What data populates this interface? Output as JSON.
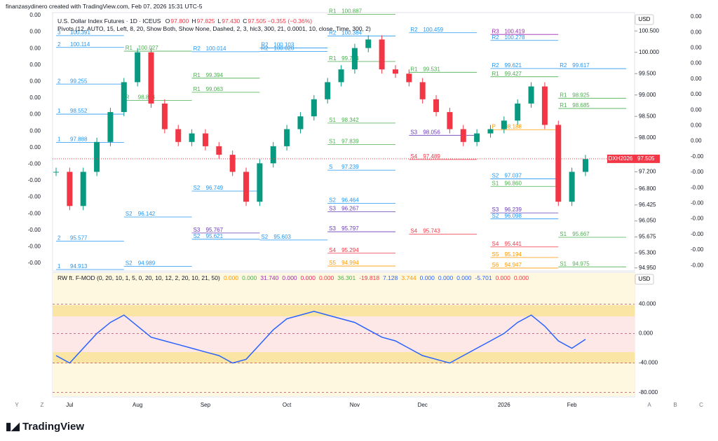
{
  "header": {
    "creator": "finanzasydinero created with TradingView.com, Feb 07, 2026 15:31 UTC-5",
    "symbol": "U.S. Dollar Index Futures · 1D · ICEUS",
    "ohlc": [
      {
        "key": "O",
        "value": "97.800"
      },
      {
        "key": "H",
        "value": "97.825"
      },
      {
        "key": "L",
        "value": "97.430"
      },
      {
        "key": "C",
        "value": "97.505"
      }
    ],
    "change": "−0.355 (−0.36%)",
    "pivots": "Pivots (12, AUTO, 15, Left, 8, 20, Show Both, Show None, Dashed, 2, 3, hlc3, 300, 21, 0.0001, 10, close, Time, 300, 2)"
  },
  "chart_data": [
    {
      "type": "candlestick",
      "currency": "USD",
      "symbol_tag": "DXH2026",
      "last": {
        "value": 97.505,
        "label": "97.505"
      },
      "categories": [
        null,
        "Jul",
        null,
        null,
        null,
        null,
        "Aug",
        null,
        null,
        null,
        null,
        "Sep",
        null,
        null,
        null,
        null,
        null,
        "Oct",
        null,
        null,
        null,
        null,
        "Nov",
        null,
        null,
        null,
        null,
        "Dec",
        null,
        null,
        null,
        null,
        null,
        "2026",
        null,
        null,
        null,
        null,
        "Feb",
        null
      ],
      "values": [
        97.2,
        96.4,
        97.2,
        97.9,
        98.6,
        99.3,
        100.0,
        98.8,
        98.2,
        97.9,
        98.1,
        97.8,
        97.6,
        97.2,
        96.5,
        97.4,
        97.8,
        98.2,
        98.5,
        98.9,
        99.3,
        99.6,
        100.1,
        100.3,
        99.6,
        99.5,
        99.3,
        98.9,
        98.6,
        98.2,
        97.9,
        98.1,
        98.2,
        98.4,
        98.8,
        99.2,
        98.3,
        96.5,
        97.2,
        97.5
      ],
      "up_color": "#089981",
      "down_color": "#f23645",
      "ylim": [
        94.88,
        100.93
      ],
      "yticks": [
        {
          "value": 100.5,
          "label": "100.500"
        },
        {
          "value": 100,
          "label": "100.000"
        },
        {
          "value": 99.5,
          "label": "99.500"
        },
        {
          "value": 99,
          "label": "99.000"
        },
        {
          "value": 98.5,
          "label": "98.500"
        },
        {
          "value": 98,
          "label": "98.000"
        },
        {
          "value": 97.2,
          "label": "97.200"
        },
        {
          "value": 96.8,
          "label": "96.800"
        },
        96.425,
        {
          "value": 96.05,
          "label": "96.050"
        },
        95.675,
        {
          "value": 95.3,
          "label": "95.300"
        },
        {
          "value": 94.95,
          "label": "94.950"
        }
      ],
      "pivots": [
        {
          "level": "3",
          "price": 100.391,
          "start": 0
        },
        {
          "level": "2",
          "price": 100.114,
          "start": 0
        },
        {
          "level": "2",
          "price": 99.255,
          "start": 0
        },
        {
          "level": "1",
          "price": 98.552,
          "start": 0
        },
        {
          "level": "1",
          "price": 97.888,
          "start": 0
        },
        {
          "level": "2",
          "price": 95.577,
          "start": 0
        },
        {
          "level": "1",
          "price": 94.913,
          "start": 0
        },
        {
          "level": "R1",
          "price": 100.027,
          "start": 5
        },
        {
          "level": "R",
          "price": 98.874,
          "start": 5
        },
        {
          "level": "S2",
          "price": 96.142,
          "start": 5
        },
        {
          "level": "S2",
          "price": 94.989,
          "start": 5
        },
        {
          "level": "R2",
          "price": 100.014,
          "start": 10
        },
        {
          "level": "R1",
          "price": 99.394,
          "start": 10
        },
        {
          "level": "R1",
          "price": 99.063,
          "start": 10
        },
        {
          "level": "S2",
          "price": 96.749,
          "start": 10
        },
        {
          "level": "S3",
          "price": 95.767,
          "start": 10
        },
        {
          "level": "S2",
          "price": 95.621,
          "start": 10
        },
        {
          "level": "R2",
          "price": 100.103,
          "start": 15
        },
        {
          "level": "R2",
          "price": {
            "value": 100.02,
            "label": "100.020"
          },
          "start": 15
        },
        {
          "level": "S2",
          "price": 95.603,
          "start": 15
        },
        {
          "level": "R1",
          "price": 100.887,
          "start": 20
        },
        {
          "level": "R2",
          "price": 100.384,
          "start": 20
        },
        {
          "level": "R1",
          "price": 99.784,
          "start": 20
        },
        {
          "level": "S1",
          "price": 98.342,
          "start": 20
        },
        {
          "level": "S1",
          "price": 97.839,
          "start": 20
        },
        {
          "level": "S",
          "price": 97.239,
          "start": 20
        },
        {
          "level": "S2",
          "price": 96.464,
          "start": 20
        },
        {
          "level": "S3",
          "price": 96.267,
          "start": 20
        },
        {
          "level": "S3",
          "price": 95.797,
          "start": 20
        },
        {
          "level": "S4",
          "price": 95.294,
          "start": 20
        },
        {
          "level": "S5",
          "price": 94.994,
          "start": 20
        },
        {
          "level": "R2",
          "price": 100.459,
          "start": 26
        },
        {
          "level": "R1",
          "price": 99.531,
          "start": 26
        },
        {
          "level": "S3",
          "price": 98.056,
          "start": 26
        },
        {
          "level": "S4",
          "price": 97.489,
          "start": 26
        },
        {
          "level": "S4",
          "price": 95.743,
          "start": 26
        },
        {
          "level": "R3",
          "price": 100.419,
          "start": 32
        },
        {
          "level": "R2",
          "price": 100.278,
          "start": 32
        },
        {
          "level": "R2",
          "price": 99.621,
          "start": 32
        },
        {
          "level": "R1",
          "price": 99.427,
          "start": 32
        },
        {
          "level": "P",
          "price": 98.188,
          "start": 32
        },
        {
          "level": "S2",
          "price": 97.037,
          "start": 32
        },
        {
          "level": "S1",
          "price": {
            "value": 96.86,
            "label": "96.860"
          },
          "start": 32
        },
        {
          "level": "S3",
          "price": 96.239,
          "start": 32
        },
        {
          "level": "S2",
          "price": 96.098,
          "start": 32
        },
        {
          "level": "S4",
          "price": 95.441,
          "start": 32
        },
        {
          "level": "S5",
          "price": 95.194,
          "start": 32
        },
        {
          "level": "S6",
          "price": 94.947,
          "start": 32
        },
        {
          "level": "R2",
          "price": 99.617,
          "start": 37
        },
        {
          "level": "R1",
          "price": 98.925,
          "start": 37
        },
        {
          "level": "R1",
          "price": 98.685,
          "start": 37
        },
        {
          "level": "S1",
          "price": 95.667,
          "start": 37
        },
        {
          "level": "S1",
          "price": 94.975,
          "start": 37
        }
      ],
      "left_scale": [
        "0.00",
        "0.00",
        "0.00",
        "0.00",
        "0.00",
        "0.00",
        "0.00",
        "0.00",
        "0.00",
        "-0.00",
        "-0.00",
        "-0.00",
        "-0.00",
        "-0.00",
        "-0.00",
        "-0.00"
      ],
      "right_scale": [
        "0.00",
        "0.00",
        "0.00",
        "0.00",
        "0.00",
        "0.00",
        "0.00",
        "0.00",
        "0.00",
        "-0.00",
        "-0.00",
        "-0.00",
        "-0.00",
        "-0.00",
        "-0.00",
        "-0.00",
        "-0.00"
      ]
    },
    {
      "type": "line",
      "title": "RW ft. F-MOD (0, 20, 10, 1, 5, 0, 20, 10, 12, 2, 20, 10, 21, 50)",
      "currency": "USD",
      "status": [
        {
          "text": "0.000",
          "color": "#ff9800"
        },
        {
          "text": "0.000",
          "color": "#4caf50"
        },
        {
          "text": "31.740",
          "color": "#9c27b0"
        },
        {
          "text": "0.000",
          "color": "#9c27b0"
        },
        {
          "text": "0.000",
          "color": "#e91e63"
        },
        {
          "text": "0.000",
          "color": "#f23645"
        },
        {
          "text": "36.301",
          "color": "#4caf50"
        },
        {
          "text": "-19.818",
          "color": "#f23645"
        },
        {
          "text": "7.128",
          "color": "#2962ff"
        },
        {
          "text": "3.744",
          "color": "#ff9800"
        },
        {
          "text": "0.000",
          "color": "#2962ff"
        },
        {
          "text": "0.000",
          "color": "#2962ff"
        },
        {
          "text": "0.000",
          "color": "#2962ff"
        },
        {
          "text": "-5.701",
          "color": "#2962ff"
        },
        {
          "text": "0.000",
          "color": "#f23645"
        },
        {
          "text": "0.000",
          "color": "#f23645"
        }
      ],
      "values": [
        -30,
        -40,
        -20,
        0,
        15,
        25,
        10,
        -5,
        -10,
        -15,
        -20,
        -25,
        -30,
        -40,
        -35,
        -15,
        5,
        20,
        25,
        30,
        25,
        20,
        15,
        5,
        -5,
        -10,
        -20,
        -30,
        -35,
        -40,
        -30,
        -20,
        -10,
        0,
        15,
        25,
        10,
        -10,
        -20,
        -8
      ],
      "color": "#2962ff",
      "ylim": [
        -86,
        83
      ],
      "yticks": [
        {
          "value": 40,
          "label": "40.000"
        },
        {
          "value": 0,
          "label": "0.000"
        },
        {
          "value": -40,
          "label": "-40.000"
        },
        {
          "value": -80,
          "label": "-80.000"
        }
      ]
    }
  ],
  "footer": {
    "brand": "TradingView",
    "left_letters": [
      "Y",
      "Z"
    ],
    "right_letters": [
      "A",
      "B",
      "C"
    ]
  }
}
